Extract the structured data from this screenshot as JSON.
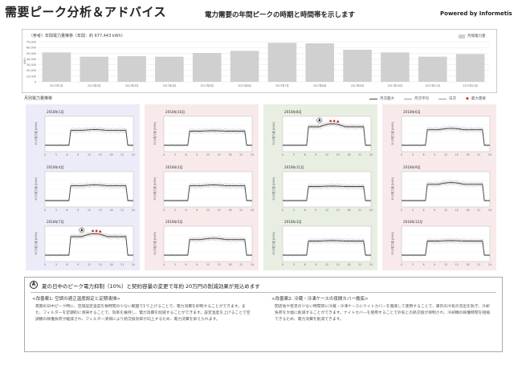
{
  "header": {
    "title": "需要ピーク分析＆アドバイス",
    "subtitle": "電力需要の年間ピークの時期と時間帯を示します",
    "brand": "Powered by Informetis"
  },
  "annual": {
    "title": "（参考）年間電力量推移（年間：約 677,443 kWh）",
    "legend": "月間電力量",
    "y_unit": "kWh",
    "y_ticks": [
      "70,000",
      "60,000",
      "50,000",
      "40,000",
      "30,000",
      "20,000",
      "10,000",
      "0"
    ],
    "chart_data": {
      "type": "bar",
      "categories": [
        "2017年1月",
        "2017年2月",
        "2017年3月",
        "2017年4月",
        "2017年5月",
        "2017年6月",
        "2017年7月",
        "2017年8月",
        "2017年9月",
        "2017年10月",
        "2017年11月",
        "2017年12月"
      ],
      "values": [
        55000,
        47000,
        48000,
        47000,
        54000,
        58000,
        73000,
        72000,
        60000,
        55000,
        47000,
        52000
      ],
      "ylim": [
        0,
        75000
      ]
    },
    "bar_color": "#d0d0d0"
  },
  "monthly": {
    "title": "月別電力量推移",
    "legend": {
      "max": "月次最大",
      "mean": "月次平均",
      "daily": "日次",
      "peak": "最大需要"
    },
    "y_axis_label": "30分電力量 [kWh]",
    "x_ticks": [
      "0",
      "3",
      "6",
      "9",
      "12",
      "15",
      "18",
      "21",
      "24"
    ],
    "peak_marker": "A",
    "tiles": [
      {
        "label": "2018年1月",
        "level": 1.0,
        "bg": "#ececf8"
      },
      {
        "label": "2018年4月",
        "level": 1.0,
        "bg": "#f8eaea"
      },
      {
        "label": "2018年7月",
        "level": 1.25,
        "bg": "#e8efe2"
      },
      {
        "label": "2018年10月",
        "level": 0.95,
        "bg": "#f8eaea"
      },
      {
        "label": "2018年2月",
        "level": 1.0,
        "bg": "#ececf8"
      },
      {
        "label": "2018年5月",
        "level": 1.05,
        "bg": "#f8eaea"
      },
      {
        "label": "2018年8月",
        "level": 1.25,
        "bg": "#e8efe2"
      },
      {
        "label": "2018年11月",
        "level": 0.95,
        "bg": "#f8eaea"
      },
      {
        "label": "2018年3月",
        "level": 0.95,
        "bg": "#ececf8"
      },
      {
        "label": "2018年6月",
        "level": 1.05,
        "bg": "#f8eaea"
      },
      {
        "label": "2018年9月",
        "level": 1.1,
        "bg": "#e8efe2"
      },
      {
        "label": "2018年12月",
        "level": 0.95,
        "bg": "#f8eaea"
      }
    ]
  },
  "note": {
    "marker": "A",
    "text": "夏の日中のピーク電力抑制（10%）と契約容量の変更で年約 20万円の削減効果が見込めます",
    "improvement1": {
      "title": "<改善案1: 空調の適正温度設定と定期清掃>",
      "body": "夏期の日中ピーク時に、空調設定温度を数時間の少ない範囲で1℃上げることで、電力消費を抑制することができます。また、フィルターを定期的に清掃することで、効率を維持し、電力消費を削減することができます。設定温度を上げることで空調機の稼働負荷が軽減され、フィルター清掃により熱交換効率が向上するため、電力消費を抑えられます。"
    },
    "improvement2": {
      "title": "<改善案2: 冷蔵・冷凍ケースの夜間カバー徹底>",
      "body": "閉店後や客足の少ない時間帯に冷蔵・冷凍ケースにナイトカバーを徹底して使用することで、庫内の冷気の流出を防ぎ、冷却負荷を大幅に削減することができます。ナイトカバーを使用することで外気との熱交換が抑制され、冷却機の稼働時間を短縮できるため、電力消費を削減できます。"
    }
  }
}
